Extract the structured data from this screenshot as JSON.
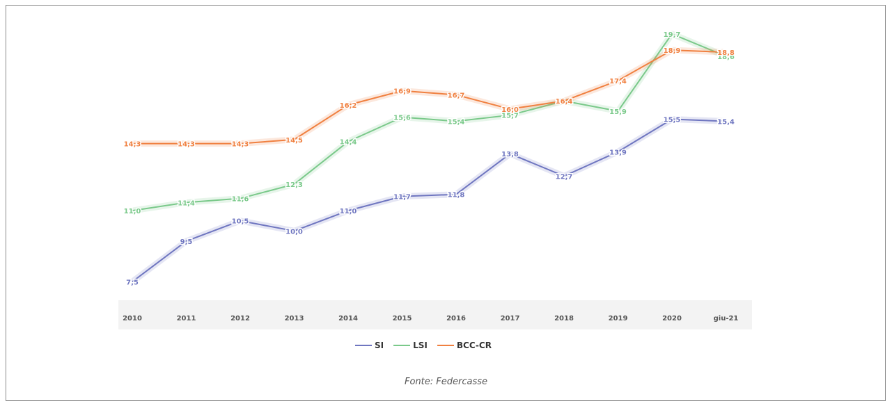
{
  "chart_data": {
    "type": "line",
    "title": "",
    "xlabel": "",
    "ylabel": "",
    "categories": [
      "2010",
      "2011",
      "2012",
      "2013",
      "2014",
      "2015",
      "2016",
      "2017",
      "2018",
      "2019",
      "2020",
      "giu-21"
    ],
    "series": [
      {
        "name": "SI",
        "color": "#6f76c0",
        "values": [
          7.5,
          9.5,
          10.5,
          10.0,
          11.0,
          11.7,
          11.8,
          13.8,
          12.7,
          13.9,
          15.5,
          15.4
        ],
        "labels": [
          "7,5",
          "9,5",
          "10,5",
          "10,0",
          "11,0",
          "11,7",
          "11,8",
          "13,8",
          "12,7",
          "13,9",
          "15,5",
          "15,4"
        ]
      },
      {
        "name": "LSI",
        "color": "#7ac98a",
        "values": [
          11.0,
          11.4,
          11.6,
          12.3,
          14.4,
          15.6,
          15.4,
          15.7,
          16.4,
          15.9,
          19.7,
          18.6
        ],
        "labels": [
          "11,0",
          "11,4",
          "11,6",
          "12,3",
          "14,4",
          "15,6",
          "15,4",
          "15,7",
          "16,4",
          "15,9",
          "19,7",
          "18,6"
        ]
      },
      {
        "name": "BCC-CR",
        "color": "#f08040",
        "values": [
          14.3,
          14.3,
          14.3,
          14.5,
          16.2,
          16.9,
          16.7,
          16.0,
          16.4,
          17.4,
          18.9,
          18.8
        ],
        "labels": [
          "14,3",
          "14,3",
          "14,3",
          "14,5",
          "16,2",
          "16,9",
          "16,7",
          "16,0",
          "16,4",
          "17,4",
          "18,9",
          "18,8"
        ]
      }
    ],
    "legend_position": "bottom",
    "grid": false
  },
  "caption": "Fonte: Federcasse"
}
